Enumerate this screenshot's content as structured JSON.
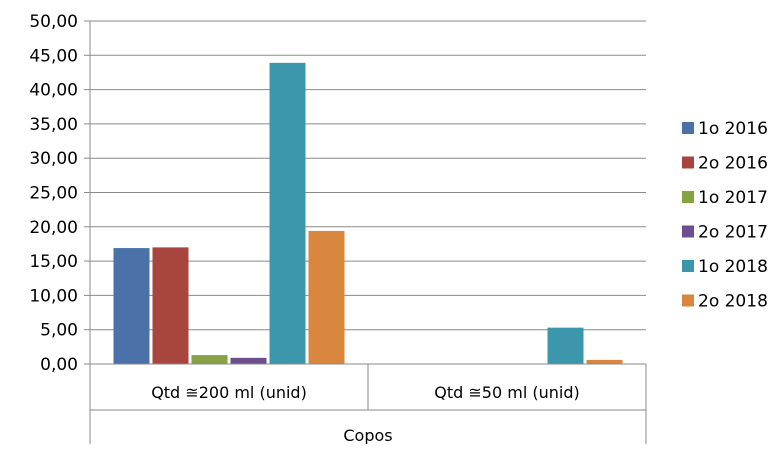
{
  "chart_data": {
    "type": "bar",
    "title": "",
    "xlabel": "Copos",
    "ylabel": "",
    "ylim": [
      0,
      50
    ],
    "yticks": [
      "0,00",
      "5,00",
      "10,00",
      "15,00",
      "20,00",
      "25,00",
      "30,00",
      "35,00",
      "40,00",
      "45,00",
      "50,00"
    ],
    "grid": true,
    "legend_position": "right",
    "categories": [
      "Qtd ≅200 ml (unid)",
      "Qtd ≅50 ml (unid)"
    ],
    "group_label": "Copos",
    "series": [
      {
        "name": "1o 2016",
        "color": "#4a72a8",
        "values": [
          16.9,
          0
        ]
      },
      {
        "name": "2o 2016",
        "color": "#a8453f",
        "values": [
          17.0,
          0
        ]
      },
      {
        "name": "1o 2017",
        "color": "#86a244",
        "values": [
          1.3,
          0
        ]
      },
      {
        "name": "2o 2017",
        "color": "#6c4f8c",
        "values": [
          0.9,
          0
        ]
      },
      {
        "name": "1o 2018",
        "color": "#3c97ad",
        "values": [
          43.9,
          5.3
        ]
      },
      {
        "name": "2o 2018",
        "color": "#d9873f",
        "values": [
          19.4,
          0.6
        ]
      }
    ]
  }
}
